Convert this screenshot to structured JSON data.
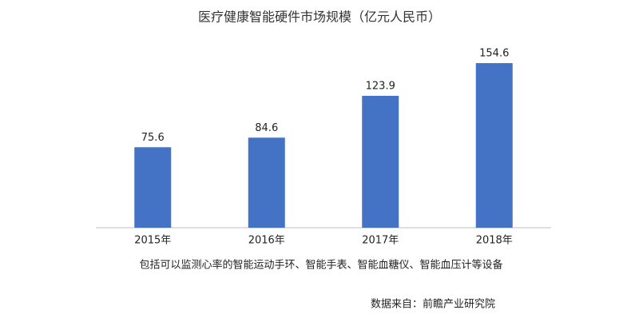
{
  "chart_data": {
    "type": "bar",
    "title": "医疗健康智能硬件市场规模（亿元人民币）",
    "categories": [
      "2015年",
      "2016年",
      "2017年",
      "2018年"
    ],
    "values": [
      75.6,
      84.6,
      123.9,
      154.6
    ],
    "color": "#4472c4",
    "note": "包括可以监测心率的智能运动手环、智能手表、智能血糖仪、智能血压计等设备",
    "source": "数据来自：前瞻产业研究院"
  }
}
